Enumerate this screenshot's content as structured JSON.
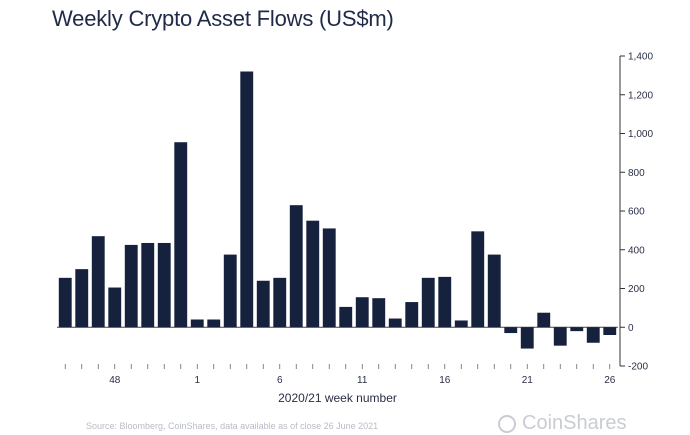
{
  "chart_data": {
    "type": "bar",
    "title": "Weekly Crypto Asset Flows (US$m)",
    "xlabel": "2020/21 week number",
    "ylabel": "",
    "ylim": [
      -200,
      1400
    ],
    "yticks": [
      -200,
      0,
      200,
      400,
      600,
      800,
      1000,
      1200,
      1400
    ],
    "ytick_labels": [
      "-200",
      "0",
      "200",
      "400",
      "600",
      "800",
      "1,000",
      "1,200",
      "1,400"
    ],
    "y_axis_side": "right",
    "xtick_labels": [
      {
        "label": "48",
        "index": 3
      },
      {
        "label": "1",
        "index": 8
      },
      {
        "label": "6",
        "index": 13
      },
      {
        "label": "11",
        "index": 18
      },
      {
        "label": "16",
        "index": 23
      },
      {
        "label": "21",
        "index": 28
      },
      {
        "label": "26",
        "index": 33
      }
    ],
    "bar_color": "#16213d",
    "values": [
      255,
      300,
      470,
      205,
      425,
      435,
      435,
      955,
      40,
      40,
      375,
      1320,
      240,
      255,
      630,
      550,
      510,
      105,
      155,
      150,
      45,
      130,
      255,
      260,
      35,
      495,
      375,
      -30,
      -110,
      75,
      -95,
      -20,
      -80,
      -40
    ]
  },
  "footer": {
    "source": "Source: Bloomberg, CoinShares, data available as of close 26 June 2021",
    "brand": "CoinShares"
  },
  "colors": {
    "bars": "#16213d",
    "axis": "#333333",
    "text": "#1f2a48"
  }
}
